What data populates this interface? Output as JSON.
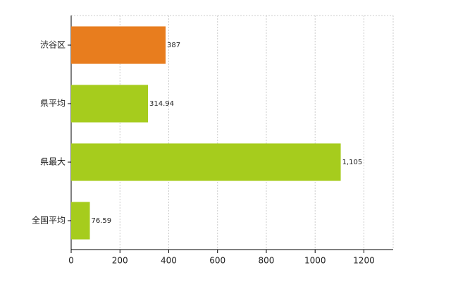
{
  "chart_data": {
    "type": "bar",
    "orientation": "horizontal",
    "categories": [
      "渋谷区",
      "県平均",
      "県最大",
      "全国平均"
    ],
    "values": [
      387,
      314.94,
      1105,
      76.59
    ],
    "value_labels": [
      "387",
      "314.94",
      "1,105",
      "76.59"
    ],
    "colors": [
      "#e87d1e",
      "#a6cc1d",
      "#a6cc1d",
      "#a6cc1d"
    ],
    "xlim": [
      0,
      1320
    ],
    "xticks": [
      0,
      200,
      400,
      600,
      800,
      1000,
      1200
    ],
    "grid": true
  }
}
